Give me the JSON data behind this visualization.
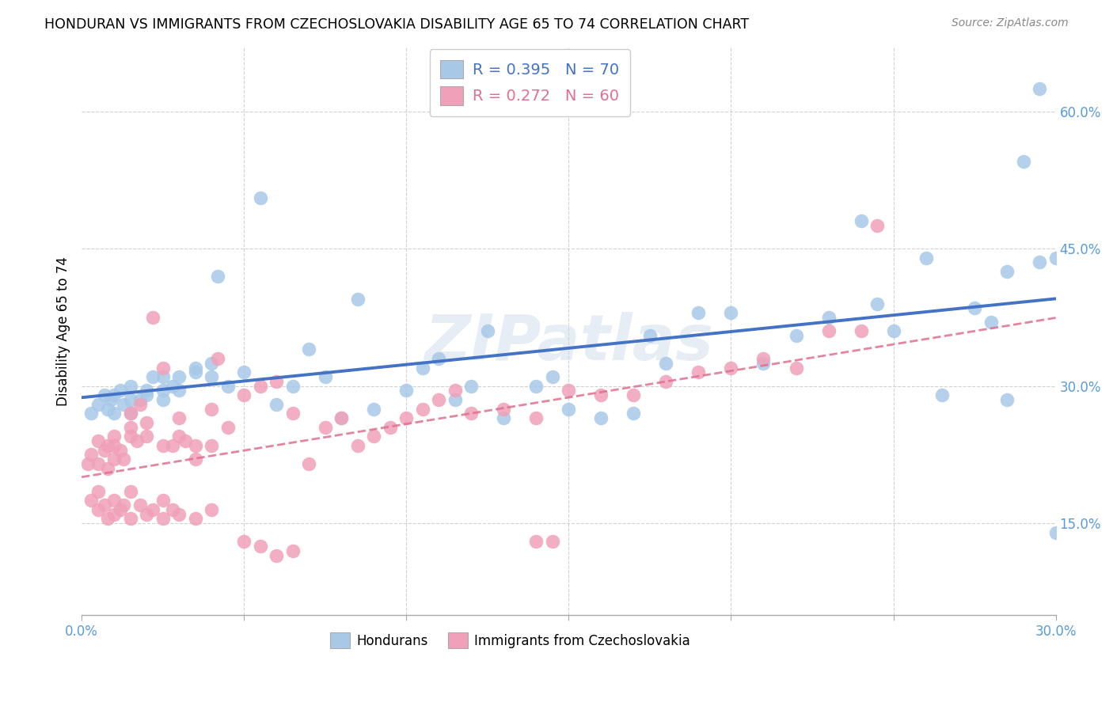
{
  "title": "HONDURAN VS IMMIGRANTS FROM CZECHOSLOVAKIA DISABILITY AGE 65 TO 74 CORRELATION CHART",
  "source": "Source: ZipAtlas.com",
  "ylabel": "Disability Age 65 to 74",
  "xlim": [
    0.0,
    0.3
  ],
  "ylim": [
    0.05,
    0.67
  ],
  "y_ticks": [
    0.15,
    0.3,
    0.45,
    0.6
  ],
  "y_tick_labels": [
    "15.0%",
    "30.0%",
    "45.0%",
    "60.0%"
  ],
  "x_tick_positions": [
    0.0,
    0.05,
    0.1,
    0.15,
    0.2,
    0.25,
    0.3
  ],
  "x_tick_labels": [
    "0.0%",
    "",
    "",
    "",
    "",
    "",
    "30.0%"
  ],
  "blue_R": "0.395",
  "blue_N": "70",
  "pink_R": "0.272",
  "pink_N": "60",
  "blue_color": "#a8c8e8",
  "pink_color": "#f0a0b8",
  "blue_line_color": "#4472c4",
  "pink_line_color": "#e07090",
  "legend_label_blue": "Hondurans",
  "legend_label_pink": "Immigrants from Czechoslovakia",
  "watermark": "ZIPatlas",
  "blue_scatter_x": [
    0.003,
    0.005,
    0.007,
    0.008,
    0.009,
    0.01,
    0.01,
    0.012,
    0.013,
    0.015,
    0.015,
    0.015,
    0.018,
    0.02,
    0.02,
    0.022,
    0.025,
    0.025,
    0.025,
    0.028,
    0.03,
    0.03,
    0.035,
    0.035,
    0.04,
    0.04,
    0.042,
    0.045,
    0.05,
    0.055,
    0.06,
    0.065,
    0.07,
    0.075,
    0.08,
    0.085,
    0.09,
    0.1,
    0.105,
    0.11,
    0.115,
    0.12,
    0.125,
    0.13,
    0.14,
    0.145,
    0.15,
    0.16,
    0.17,
    0.175,
    0.18,
    0.19,
    0.2,
    0.21,
    0.22,
    0.23,
    0.24,
    0.245,
    0.25,
    0.26,
    0.265,
    0.275,
    0.28,
    0.285,
    0.29,
    0.295,
    0.3,
    0.285,
    0.295,
    0.3
  ],
  "blue_scatter_y": [
    0.27,
    0.28,
    0.29,
    0.275,
    0.285,
    0.27,
    0.29,
    0.295,
    0.28,
    0.27,
    0.285,
    0.3,
    0.285,
    0.29,
    0.295,
    0.31,
    0.285,
    0.295,
    0.31,
    0.3,
    0.295,
    0.31,
    0.315,
    0.32,
    0.31,
    0.325,
    0.42,
    0.3,
    0.315,
    0.505,
    0.28,
    0.3,
    0.34,
    0.31,
    0.265,
    0.395,
    0.275,
    0.295,
    0.32,
    0.33,
    0.285,
    0.3,
    0.36,
    0.265,
    0.3,
    0.31,
    0.275,
    0.265,
    0.27,
    0.355,
    0.325,
    0.38,
    0.38,
    0.325,
    0.355,
    0.375,
    0.48,
    0.39,
    0.36,
    0.44,
    0.29,
    0.385,
    0.37,
    0.425,
    0.545,
    0.625,
    0.44,
    0.285,
    0.435,
    0.14
  ],
  "pink_scatter_x": [
    0.002,
    0.003,
    0.005,
    0.005,
    0.007,
    0.008,
    0.008,
    0.01,
    0.01,
    0.01,
    0.012,
    0.013,
    0.015,
    0.015,
    0.015,
    0.017,
    0.018,
    0.02,
    0.02,
    0.022,
    0.025,
    0.025,
    0.028,
    0.03,
    0.03,
    0.032,
    0.035,
    0.035,
    0.04,
    0.04,
    0.042,
    0.045,
    0.05,
    0.055,
    0.06,
    0.065,
    0.07,
    0.075,
    0.08,
    0.085,
    0.09,
    0.095,
    0.1,
    0.105,
    0.11,
    0.115,
    0.12,
    0.13,
    0.14,
    0.15,
    0.16,
    0.17,
    0.18,
    0.19,
    0.2,
    0.21,
    0.22,
    0.23,
    0.24,
    0.245
  ],
  "pink_scatter_y": [
    0.215,
    0.225,
    0.215,
    0.24,
    0.23,
    0.21,
    0.235,
    0.22,
    0.235,
    0.245,
    0.23,
    0.22,
    0.245,
    0.255,
    0.27,
    0.24,
    0.28,
    0.245,
    0.26,
    0.375,
    0.235,
    0.32,
    0.235,
    0.245,
    0.265,
    0.24,
    0.235,
    0.22,
    0.235,
    0.275,
    0.33,
    0.255,
    0.29,
    0.3,
    0.305,
    0.27,
    0.215,
    0.255,
    0.265,
    0.235,
    0.245,
    0.255,
    0.265,
    0.275,
    0.285,
    0.295,
    0.27,
    0.275,
    0.265,
    0.295,
    0.29,
    0.29,
    0.305,
    0.315,
    0.32,
    0.33,
    0.32,
    0.36,
    0.36,
    0.475
  ],
  "pink_low_x": [
    0.003,
    0.005,
    0.005,
    0.007,
    0.008,
    0.01,
    0.01,
    0.012,
    0.013,
    0.015,
    0.015,
    0.018,
    0.02,
    0.022,
    0.025,
    0.025,
    0.028,
    0.03,
    0.035,
    0.04,
    0.05,
    0.055,
    0.06,
    0.065,
    0.14,
    0.145
  ],
  "pink_low_y": [
    0.175,
    0.165,
    0.185,
    0.17,
    0.155,
    0.16,
    0.175,
    0.165,
    0.17,
    0.155,
    0.185,
    0.17,
    0.16,
    0.165,
    0.155,
    0.175,
    0.165,
    0.16,
    0.155,
    0.165,
    0.13,
    0.125,
    0.115,
    0.12,
    0.13,
    0.13
  ]
}
